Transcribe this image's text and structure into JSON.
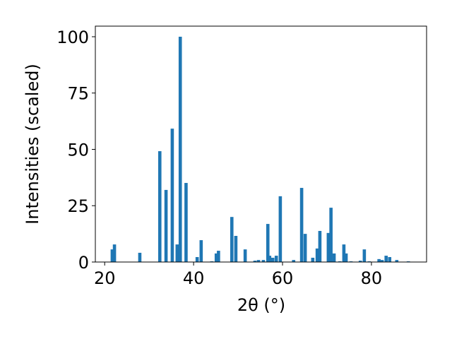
{
  "chart_data": {
    "type": "bar",
    "x_label": "2θ (°)",
    "y_label": "Intensities (scaled)",
    "x": [
      21.7,
      22.2,
      27.9,
      32.4,
      33.8,
      35.2,
      36.3,
      37.0,
      38.3,
      40.8,
      41.7,
      44.1,
      45.1,
      45.6,
      48.6,
      49.5,
      51.6,
      53.8,
      54.6,
      55.7,
      56.7,
      57.1,
      57.8,
      58.6,
      59.5,
      62.5,
      64.3,
      65.1,
      66.8,
      67.8,
      68.4,
      70.3,
      70.9,
      71.6,
      72.9,
      73.8,
      74.3,
      75.4,
      77.5,
      78.4,
      79.5,
      81.7,
      82.4,
      83.3,
      84.1,
      85.7,
      88.3
    ],
    "values": [
      5.6,
      7.8,
      4.1,
      49.2,
      32,
      59.2,
      7.8,
      100,
      35.1,
      2.2,
      9.7,
      0.3,
      3.8,
      5,
      20,
      11.6,
      5.6,
      0.6,
      0.9,
      0.9,
      16.9,
      2.8,
      1.9,
      2.8,
      29.2,
      0.9,
      32.9,
      12.5,
      1.9,
      6,
      13.8,
      12.9,
      24.1,
      3.8,
      0.3,
      7.8,
      3.8,
      0.3,
      0.6,
      5.6,
      0.3,
      1.3,
      0.9,
      2.8,
      2.2,
      0.9,
      0.3
    ],
    "color": "#1f77b4",
    "xlim": [
      17.9,
      92.4
    ],
    "xticks": [
      20,
      40,
      60,
      80
    ],
    "ylim": [
      0,
      104.7
    ],
    "yticks": [
      0,
      25,
      50,
      75,
      100
    ]
  }
}
